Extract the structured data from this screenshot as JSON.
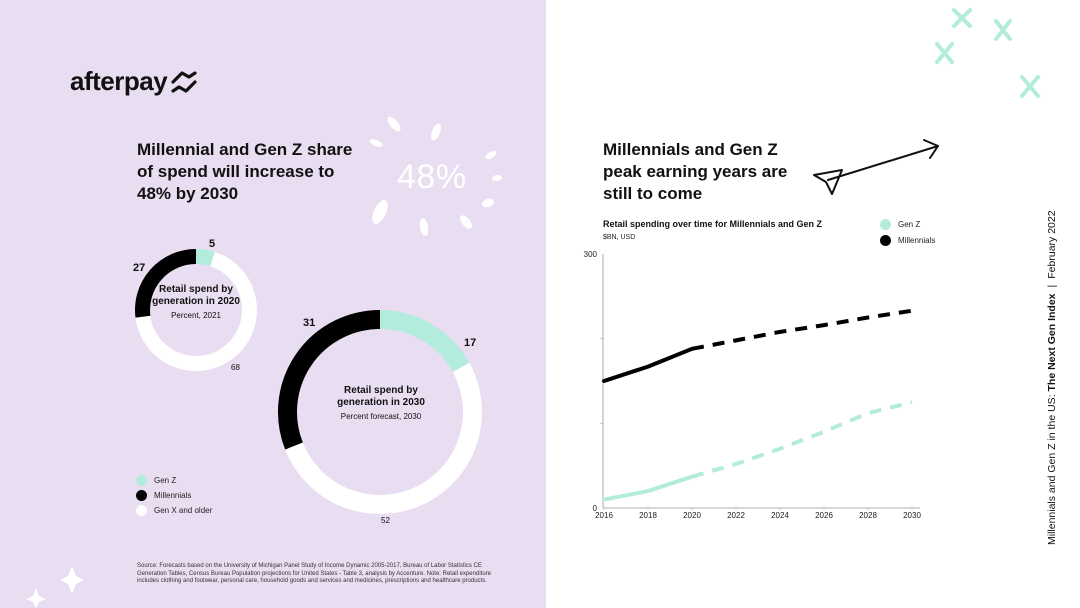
{
  "brand": {
    "logo_text": "afterpay"
  },
  "left": {
    "headline": "Millennial and Gen Z share of spend will increase to 48% by 2030",
    "big_percent": "48%",
    "donut_2020": {
      "title": "Retail spend by generation in 2020",
      "subtitle": "Percent, 2021",
      "segments": [
        {
          "name": "Gen Z",
          "value": 5,
          "label": "5"
        },
        {
          "name": "Millennials",
          "value": 27,
          "label": "27"
        },
        {
          "name": "Gen X and older",
          "value": 68,
          "label": "68"
        }
      ]
    },
    "donut_2030": {
      "title": "Retail spend by generation in 2030",
      "subtitle": "Percent forecast, 2030",
      "segments": [
        {
          "name": "Gen Z",
          "value": 17,
          "label": "17"
        },
        {
          "name": "Millennials",
          "value": 31,
          "label": "31"
        },
        {
          "name": "Gen X and older",
          "value": 52,
          "label": "52"
        }
      ]
    },
    "legend": [
      {
        "label": "Gen Z",
        "color": "#b3ecdc"
      },
      {
        "label": "Millennials",
        "color": "#000000"
      },
      {
        "label": "Gen X and older",
        "color": "#ffffff"
      }
    ],
    "source": "Source: Forecasts based on the University of Michigan Panel Study of Income Dynamic 2005-2017, Bureau of Labor Statistics CE Generation Tables, Census Bureau Population projections for United States - Table 3, analysis by Accenture. Note: Retail expenditure includes clothing and footwear, personal care, household goods and services and medicines, prescriptions and healthcare products."
  },
  "right": {
    "headline": "Millennials and Gen Z peak earning years are still to come",
    "chart_title": "Retail spending over time for Millennials and Gen Z",
    "chart_unit": "$BN, USD",
    "legend": [
      {
        "label": "Gen Z",
        "color": "#b3ecdc"
      },
      {
        "label": "Millennials",
        "color": "#000000"
      }
    ]
  },
  "side_label": {
    "part1": "Millennials and Gen Z in the US: ",
    "part2": "The Next Gen Index",
    "separator": "|",
    "part3": "February 2022"
  },
  "chart_data": [
    {
      "type": "pie",
      "title": "Retail spend by generation in 2020",
      "categories": [
        "Gen Z",
        "Millennials",
        "Gen X and older"
      ],
      "values": [
        5,
        27,
        68
      ]
    },
    {
      "type": "pie",
      "title": "Retail spend by generation in 2030",
      "categories": [
        "Gen Z",
        "Millennials",
        "Gen X and older"
      ],
      "values": [
        17,
        31,
        52
      ]
    },
    {
      "type": "line",
      "title": "Retail spending over time for Millennials and Gen Z",
      "ylabel": "$BN, USD",
      "ylim": [
        0,
        300
      ],
      "yticks": [
        "0",
        "300"
      ],
      "x": [
        2016,
        2018,
        2020,
        2022,
        2024,
        2026,
        2028,
        2030
      ],
      "xticks": [
        "2016",
        "2018",
        "2020",
        "2022",
        "2024",
        "2026",
        "2028",
        "2030"
      ],
      "actual_until": 2020,
      "series": [
        {
          "name": "Millennials",
          "color": "#000000",
          "values": [
            150,
            167,
            188,
            198,
            208,
            216,
            225,
            233
          ]
        },
        {
          "name": "Gen Z",
          "color": "#b3ecdc",
          "values": [
            10,
            20,
            37,
            52,
            70,
            90,
            112,
            125
          ]
        }
      ]
    }
  ]
}
